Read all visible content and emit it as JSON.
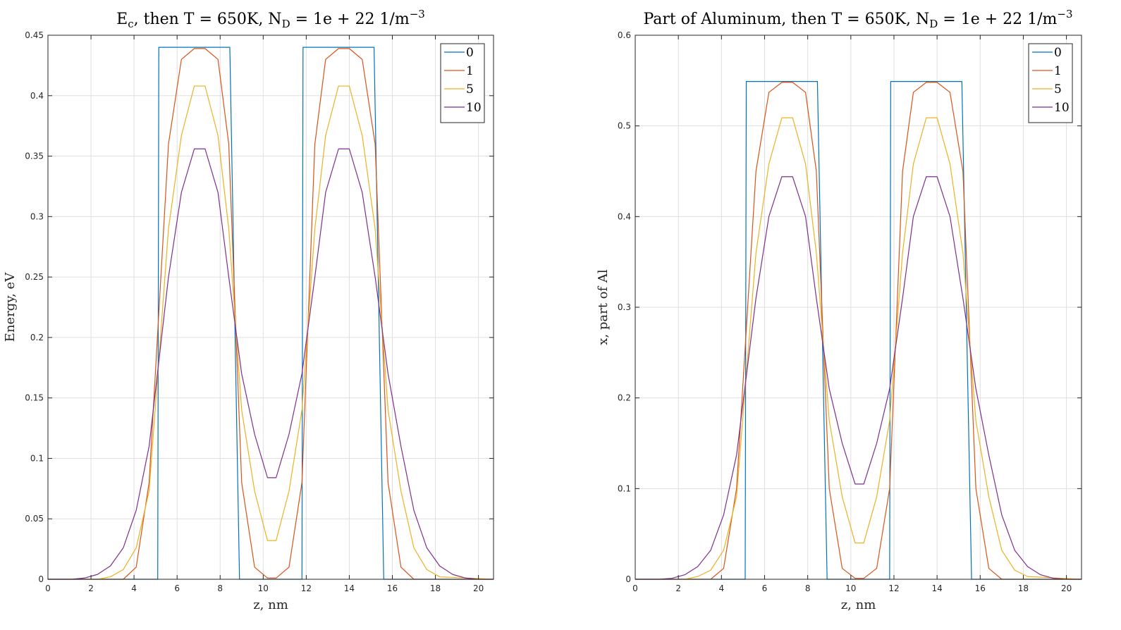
{
  "chart_data": [
    {
      "type": "line",
      "title_parts": [
        "E",
        "c",
        ", then T = 650K, N",
        "D",
        " = 1e + 22 1/m",
        "−3"
      ],
      "xlabel": "z, nm",
      "ylabel": "Energy, eV",
      "xlim": [
        0,
        20.7
      ],
      "ylim": [
        0,
        0.45
      ],
      "xticks": [
        0,
        2,
        4,
        6,
        8,
        10,
        12,
        14,
        16,
        18,
        20
      ],
      "yticks": [
        0,
        0.05,
        0.1,
        0.15,
        0.2,
        0.25,
        0.3,
        0.35,
        0.4,
        0.45
      ],
      "ytick_labels": [
        "0",
        "0.05",
        "0.1",
        "0.15",
        "0.2",
        "0.25",
        "0.3",
        "0.35",
        "0.4",
        "0.45"
      ],
      "grid": true,
      "legend_position": "top-right",
      "series": [
        {
          "name": "0",
          "color": "#0072BD",
          "x": [
            0,
            5.1,
            5.15,
            8.45,
            8.9,
            11.8,
            11.85,
            15.15,
            15.6,
            20.7
          ],
          "y": [
            0,
            0,
            0.44,
            0.44,
            0,
            0,
            0.44,
            0.44,
            0,
            0
          ]
        },
        {
          "name": "1",
          "color": "#D95319",
          "x": [
            0,
            3.5,
            4.1,
            4.7,
            5.6,
            6.2,
            6.8,
            7.3,
            7.9,
            8.4,
            9.0,
            9.6,
            10.2,
            10.6,
            11.2,
            11.8,
            12.4,
            12.9,
            13.5,
            14.0,
            14.6,
            15.2,
            15.8,
            16.4,
            17.0,
            20.7
          ],
          "y": [
            0,
            0,
            0.01,
            0.08,
            0.36,
            0.43,
            0.439,
            0.439,
            0.43,
            0.36,
            0.08,
            0.01,
            0.001,
            0.001,
            0.01,
            0.08,
            0.36,
            0.43,
            0.439,
            0.439,
            0.43,
            0.36,
            0.08,
            0.01,
            0,
            0
          ]
        },
        {
          "name": "5",
          "color": "#EDB120",
          "x": [
            0,
            2.3,
            2.9,
            3.5,
            4.1,
            4.7,
            5.6,
            6.2,
            6.8,
            7.3,
            7.9,
            8.4,
            9.0,
            9.6,
            10.2,
            10.6,
            11.2,
            11.8,
            12.4,
            12.9,
            13.5,
            14.0,
            14.6,
            15.2,
            15.8,
            16.4,
            17.0,
            17.6,
            18.2,
            20.7
          ],
          "y": [
            0,
            0,
            0.002,
            0.008,
            0.026,
            0.073,
            0.29,
            0.367,
            0.408,
            0.408,
            0.367,
            0.29,
            0.14,
            0.073,
            0.032,
            0.032,
            0.073,
            0.14,
            0.29,
            0.367,
            0.408,
            0.408,
            0.367,
            0.29,
            0.14,
            0.073,
            0.026,
            0.008,
            0.002,
            0
          ]
        },
        {
          "name": "10",
          "color": "#7E2F8E",
          "x": [
            0,
            1.1,
            1.7,
            2.3,
            2.9,
            3.5,
            4.1,
            4.7,
            5.6,
            6.2,
            6.8,
            7.3,
            7.9,
            8.4,
            9.0,
            9.6,
            10.2,
            10.6,
            11.2,
            11.8,
            12.4,
            12.9,
            13.5,
            14.0,
            14.6,
            15.2,
            15.8,
            16.4,
            17.0,
            17.6,
            18.2,
            18.8,
            19.4,
            20.0,
            20.7
          ],
          "y": [
            0,
            0,
            0.001,
            0.004,
            0.011,
            0.026,
            0.057,
            0.11,
            0.25,
            0.32,
            0.356,
            0.356,
            0.32,
            0.25,
            0.17,
            0.12,
            0.084,
            0.084,
            0.12,
            0.17,
            0.25,
            0.32,
            0.356,
            0.356,
            0.32,
            0.25,
            0.17,
            0.11,
            0.057,
            0.026,
            0.011,
            0.004,
            0.001,
            0,
            0
          ]
        }
      ]
    },
    {
      "type": "line",
      "title_parts": [
        "Part of Aluminum, then T = 650K, N",
        "D",
        " = 1e + 22 1/m",
        "−3"
      ],
      "xlabel": "z, nm",
      "ylabel": "x, part of Al",
      "xlim": [
        0,
        20.7
      ],
      "ylim": [
        0,
        0.6
      ],
      "xticks": [
        0,
        2,
        4,
        6,
        8,
        10,
        12,
        14,
        16,
        18,
        20
      ],
      "yticks": [
        0,
        0.1,
        0.2,
        0.3,
        0.4,
        0.5,
        0.6
      ],
      "ytick_labels": [
        "0",
        "0.1",
        "0.2",
        "0.3",
        "0.4",
        "0.5",
        "0.6"
      ],
      "grid": true,
      "legend_position": "top-right",
      "series": [
        {
          "name": "0",
          "color": "#0072BD",
          "x": [
            0,
            5.1,
            5.15,
            8.45,
            8.9,
            11.8,
            11.85,
            15.15,
            15.6,
            20.7
          ],
          "y": [
            0,
            0,
            0.549,
            0.549,
            0,
            0,
            0.549,
            0.549,
            0,
            0
          ]
        },
        {
          "name": "1",
          "color": "#D95319",
          "x": [
            0,
            3.5,
            4.1,
            4.7,
            5.6,
            6.2,
            6.8,
            7.3,
            7.9,
            8.4,
            9.0,
            9.6,
            10.2,
            10.6,
            11.2,
            11.8,
            12.4,
            12.9,
            13.5,
            14.0,
            14.6,
            15.2,
            15.8,
            16.4,
            17.0,
            20.7
          ],
          "y": [
            0,
            0,
            0.012,
            0.1,
            0.45,
            0.537,
            0.548,
            0.548,
            0.537,
            0.45,
            0.1,
            0.012,
            0.001,
            0.001,
            0.012,
            0.1,
            0.45,
            0.537,
            0.548,
            0.548,
            0.537,
            0.45,
            0.1,
            0.012,
            0,
            0
          ]
        },
        {
          "name": "5",
          "color": "#EDB120",
          "x": [
            0,
            2.3,
            2.9,
            3.5,
            4.1,
            4.7,
            5.6,
            6.2,
            6.8,
            7.3,
            7.9,
            8.4,
            9.0,
            9.6,
            10.2,
            10.6,
            11.2,
            11.8,
            12.4,
            12.9,
            13.5,
            14.0,
            14.6,
            15.2,
            15.8,
            16.4,
            17.0,
            17.6,
            18.2,
            20.7
          ],
          "y": [
            0,
            0,
            0.003,
            0.01,
            0.032,
            0.091,
            0.36,
            0.458,
            0.509,
            0.509,
            0.458,
            0.36,
            0.175,
            0.091,
            0.04,
            0.04,
            0.091,
            0.175,
            0.36,
            0.458,
            0.509,
            0.509,
            0.458,
            0.36,
            0.175,
            0.091,
            0.032,
            0.01,
            0.003,
            0
          ]
        },
        {
          "name": "10",
          "color": "#7E2F8E",
          "x": [
            0,
            1.1,
            1.7,
            2.3,
            2.9,
            3.5,
            4.1,
            4.7,
            5.6,
            6.2,
            6.8,
            7.3,
            7.9,
            8.4,
            9.0,
            9.6,
            10.2,
            10.6,
            11.2,
            11.8,
            12.4,
            12.9,
            13.5,
            14.0,
            14.6,
            15.2,
            15.8,
            16.4,
            17.0,
            17.6,
            18.2,
            18.8,
            19.4,
            20.0,
            20.7
          ],
          "y": [
            0,
            0,
            0.001,
            0.005,
            0.014,
            0.032,
            0.071,
            0.137,
            0.31,
            0.4,
            0.444,
            0.444,
            0.4,
            0.31,
            0.21,
            0.15,
            0.105,
            0.105,
            0.15,
            0.21,
            0.31,
            0.4,
            0.444,
            0.444,
            0.4,
            0.31,
            0.21,
            0.137,
            0.071,
            0.032,
            0.014,
            0.005,
            0.001,
            0,
            0
          ]
        }
      ]
    }
  ]
}
